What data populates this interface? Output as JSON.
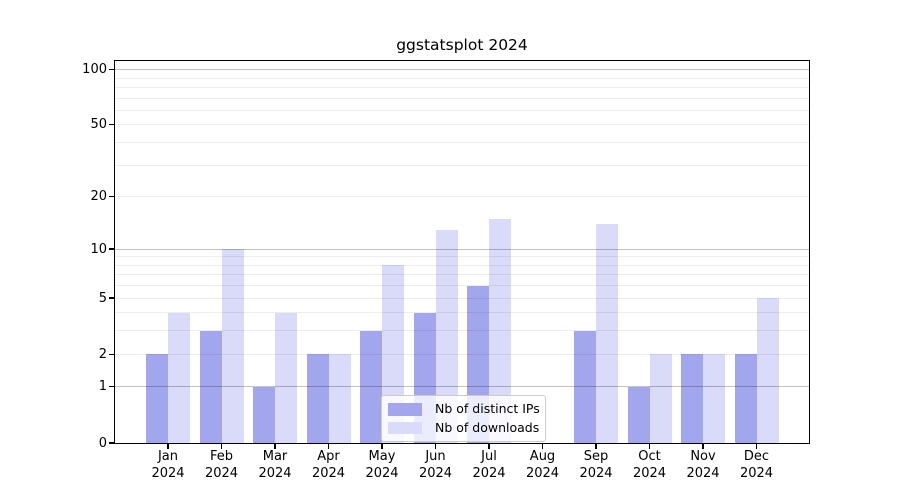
{
  "chart_data": {
    "type": "bar",
    "title": "ggstatsplot 2024",
    "categories": [
      "Jan",
      "Feb",
      "Mar",
      "Apr",
      "May",
      "Jun",
      "Jul",
      "Aug",
      "Sep",
      "Oct",
      "Nov",
      "Dec"
    ],
    "category_year": "2024",
    "series": [
      {
        "name": "Nb of distinct IPs",
        "color": "#a2a6ed",
        "values": [
          2,
          3,
          1,
          2,
          3,
          4,
          6,
          0,
          3,
          1,
          2,
          2
        ]
      },
      {
        "name": "Nb of downloads",
        "color": "#d9dbf8",
        "values": [
          4,
          10,
          4,
          2,
          8,
          13,
          15,
          0,
          14,
          2,
          2,
          5
        ]
      }
    ],
    "xlabel": "",
    "ylabel": "",
    "yscale": "log1p",
    "ylim": [
      0,
      115
    ],
    "yticks": [
      0,
      1,
      2,
      5,
      10,
      20,
      50,
      100
    ],
    "gridlines": {
      "major": [
        1,
        10,
        100
      ],
      "minor": [
        2,
        3,
        4,
        5,
        6,
        7,
        8,
        9,
        20,
        30,
        40,
        50,
        60,
        70,
        80,
        90
      ]
    },
    "grid": true,
    "legend_position": "lower center"
  },
  "colors": {
    "major_grid": "rgba(0,0,0,0.24)",
    "minor_grid": "rgba(0,0,0,0.07)",
    "spine": "#000000",
    "legend_border": "#cbcbcb"
  }
}
